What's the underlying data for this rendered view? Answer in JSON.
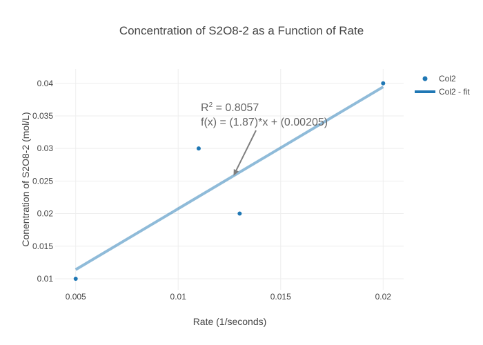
{
  "chart_data": {
    "type": "scatter",
    "title": "Concentration of S2O8-2 as a Function of Rate",
    "xlabel": "Rate (1/seconds)",
    "ylabel": "Conentration of S2O8-2 (mol/L)",
    "xlim": [
      0.004,
      0.021
    ],
    "ylim": [
      0.0083,
      0.0422
    ],
    "xticks": [
      0.005,
      0.01,
      0.015,
      0.02
    ],
    "xtick_labels": [
      "0.005",
      "0.01",
      "0.015",
      "0.02"
    ],
    "yticks": [
      0.01,
      0.015,
      0.02,
      0.025,
      0.03,
      0.035,
      0.04
    ],
    "ytick_labels": [
      "0.01",
      "0.015",
      "0.02",
      "0.025",
      "0.03",
      "0.035",
      "0.04"
    ],
    "series": [
      {
        "name": "Col2",
        "mode": "markers",
        "color": "#1f77b4",
        "x": [
          0.005,
          0.011,
          0.013,
          0.02
        ],
        "y": [
          0.01,
          0.03,
          0.02,
          0.04
        ]
      },
      {
        "name": "Col2 - fit",
        "mode": "line",
        "color": "#1f77b4",
        "x": [
          0.005,
          0.02
        ],
        "y": [
          0.0114,
          0.03945
        ]
      }
    ],
    "annotation": {
      "r2_prefix": "R",
      "r2_superscript": "2",
      "r2_value": " = 0.8057",
      "equation": "f(x) = (1.87)*x + (0.00205)",
      "arrow_target": {
        "x": 0.0127,
        "y": 0.0258
      }
    },
    "legend_position": "top-right",
    "grid": true
  }
}
